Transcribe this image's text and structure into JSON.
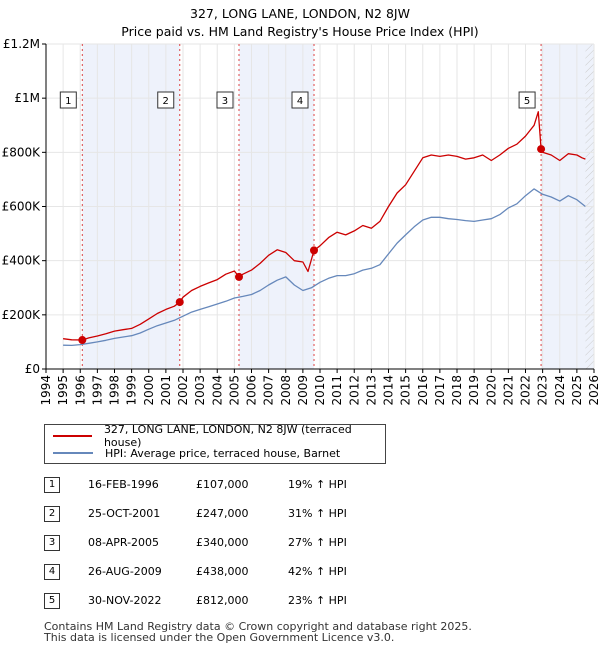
{
  "chart_data": {
    "type": "line",
    "title": "327, LONG LANE, LONDON, N2 8JW",
    "subtitle": "Price paid vs. HM Land Registry's House Price Index (HPI)",
    "xlabel": "",
    "ylabel": "",
    "xlim": [
      1994,
      2026
    ],
    "ylim": [
      0,
      1200000
    ],
    "x_ticks": [
      "1994",
      "1995",
      "1996",
      "1997",
      "1998",
      "1999",
      "2000",
      "2001",
      "2002",
      "2003",
      "2004",
      "2005",
      "2006",
      "2007",
      "2008",
      "2009",
      "2010",
      "2011",
      "2012",
      "2013",
      "2014",
      "2015",
      "2016",
      "2017",
      "2018",
      "2019",
      "2020",
      "2021",
      "2022",
      "2023",
      "2024",
      "2025",
      "2026"
    ],
    "y_ticks": [
      {
        "value": 0,
        "label": "£0"
      },
      {
        "value": 200000,
        "label": "£200K"
      },
      {
        "value": 400000,
        "label": "£400K"
      },
      {
        "value": 600000,
        "label": "£600K"
      },
      {
        "value": 800000,
        "label": "£800K"
      },
      {
        "value": 1000000,
        "label": "£1M"
      },
      {
        "value": 1200000,
        "label": "£1.2M"
      }
    ],
    "series": [
      {
        "name": "327, LONG LANE, LONDON, N2 8JW (terraced house)",
        "color": "#cc0000",
        "x": [
          1995.0,
          1995.5,
          1996.12,
          1996.5,
          1997.0,
          1997.5,
          1998.0,
          1998.5,
          1999.0,
          1999.5,
          2000.0,
          2000.5,
          2001.0,
          2001.5,
          2001.81,
          2002.0,
          2002.5,
          2003.0,
          2003.5,
          2004.0,
          2004.5,
          2005.0,
          2005.27,
          2005.5,
          2006.0,
          2006.5,
          2007.0,
          2007.5,
          2008.0,
          2008.5,
          2009.0,
          2009.3,
          2009.65,
          2010.0,
          2010.5,
          2011.0,
          2011.5,
          2012.0,
          2012.5,
          2013.0,
          2013.5,
          2014.0,
          2014.5,
          2015.0,
          2015.5,
          2016.0,
          2016.5,
          2017.0,
          2017.5,
          2018.0,
          2018.5,
          2019.0,
          2019.5,
          2020.0,
          2020.5,
          2021.0,
          2021.5,
          2022.0,
          2022.5,
          2022.75,
          2022.91,
          2023.0,
          2023.5,
          2024.0,
          2024.5,
          2025.0,
          2025.3,
          2025.5
        ],
        "values": [
          112000,
          108000,
          107000,
          115000,
          122000,
          130000,
          140000,
          145000,
          150000,
          165000,
          185000,
          205000,
          220000,
          232000,
          247000,
          265000,
          290000,
          305000,
          318000,
          330000,
          350000,
          362000,
          340000,
          350000,
          365000,
          390000,
          420000,
          440000,
          430000,
          400000,
          395000,
          360000,
          438000,
          455000,
          485000,
          505000,
          495000,
          510000,
          530000,
          520000,
          545000,
          600000,
          650000,
          680000,
          730000,
          780000,
          790000,
          785000,
          790000,
          785000,
          775000,
          780000,
          790000,
          770000,
          790000,
          815000,
          830000,
          860000,
          900000,
          950000,
          812000,
          800000,
          790000,
          770000,
          795000,
          790000,
          780000,
          775000
        ]
      },
      {
        "name": "HPI: Average price, terraced house, Barnet",
        "color": "#6688bb",
        "x": [
          1995.0,
          1995.5,
          1996.0,
          1996.5,
          1997.0,
          1997.5,
          1998.0,
          1998.5,
          1999.0,
          1999.5,
          2000.0,
          2000.5,
          2001.0,
          2001.5,
          2002.0,
          2002.5,
          2003.0,
          2003.5,
          2004.0,
          2004.5,
          2005.0,
          2005.5,
          2006.0,
          2006.5,
          2007.0,
          2007.5,
          2008.0,
          2008.5,
          2009.0,
          2009.5,
          2010.0,
          2010.5,
          2011.0,
          2011.5,
          2012.0,
          2012.5,
          2013.0,
          2013.5,
          2014.0,
          2014.5,
          2015.0,
          2015.5,
          2016.0,
          2016.5,
          2017.0,
          2017.5,
          2018.0,
          2018.5,
          2019.0,
          2019.5,
          2020.0,
          2020.5,
          2021.0,
          2021.5,
          2022.0,
          2022.5,
          2023.0,
          2023.5,
          2024.0,
          2024.5,
          2025.0,
          2025.5
        ],
        "values": [
          88000,
          87000,
          90000,
          95000,
          100000,
          106000,
          113000,
          118000,
          123000,
          133000,
          147000,
          160000,
          170000,
          180000,
          195000,
          210000,
          220000,
          230000,
          240000,
          250000,
          262000,
          268000,
          275000,
          290000,
          310000,
          328000,
          340000,
          310000,
          290000,
          300000,
          320000,
          335000,
          345000,
          345000,
          352000,
          365000,
          372000,
          385000,
          425000,
          465000,
          495000,
          525000,
          550000,
          560000,
          560000,
          555000,
          552000,
          548000,
          545000,
          550000,
          555000,
          570000,
          595000,
          610000,
          640000,
          665000,
          645000,
          635000,
          620000,
          640000,
          625000,
          600000
        ]
      }
    ],
    "sales": [
      {
        "label": "1",
        "date": "16-FEB-1996",
        "year": 1996.12,
        "price": 107000,
        "price_text": "£107,000",
        "hpi_text": "19% ↑ HPI"
      },
      {
        "label": "2",
        "date": "25-OCT-2001",
        "year": 2001.81,
        "price": 247000,
        "price_text": "£247,000",
        "hpi_text": "31% ↑ HPI"
      },
      {
        "label": "3",
        "date": "08-APR-2005",
        "year": 2005.27,
        "price": 340000,
        "price_text": "£340,000",
        "hpi_text": "27% ↑ HPI"
      },
      {
        "label": "4",
        "date": "26-AUG-2009",
        "year": 2009.65,
        "price": 438000,
        "price_text": "£438,000",
        "hpi_text": "42% ↑ HPI"
      },
      {
        "label": "5",
        "date": "30-NOV-2022",
        "year": 2022.91,
        "price": 812000,
        "price_text": "£812,000",
        "hpi_text": "23% ↑ HPI"
      }
    ],
    "grid": true,
    "legend_position": "bottom",
    "colors": {
      "price": "#cc0000",
      "hpi": "#6688bb",
      "highlight": "#eef2fb",
      "grid": "#e6e6e6"
    }
  },
  "footer": {
    "line1": "Contains HM Land Registry data © Crown copyright and database right 2025.",
    "line2": "This data is licensed under the Open Government Licence v3.0."
  }
}
